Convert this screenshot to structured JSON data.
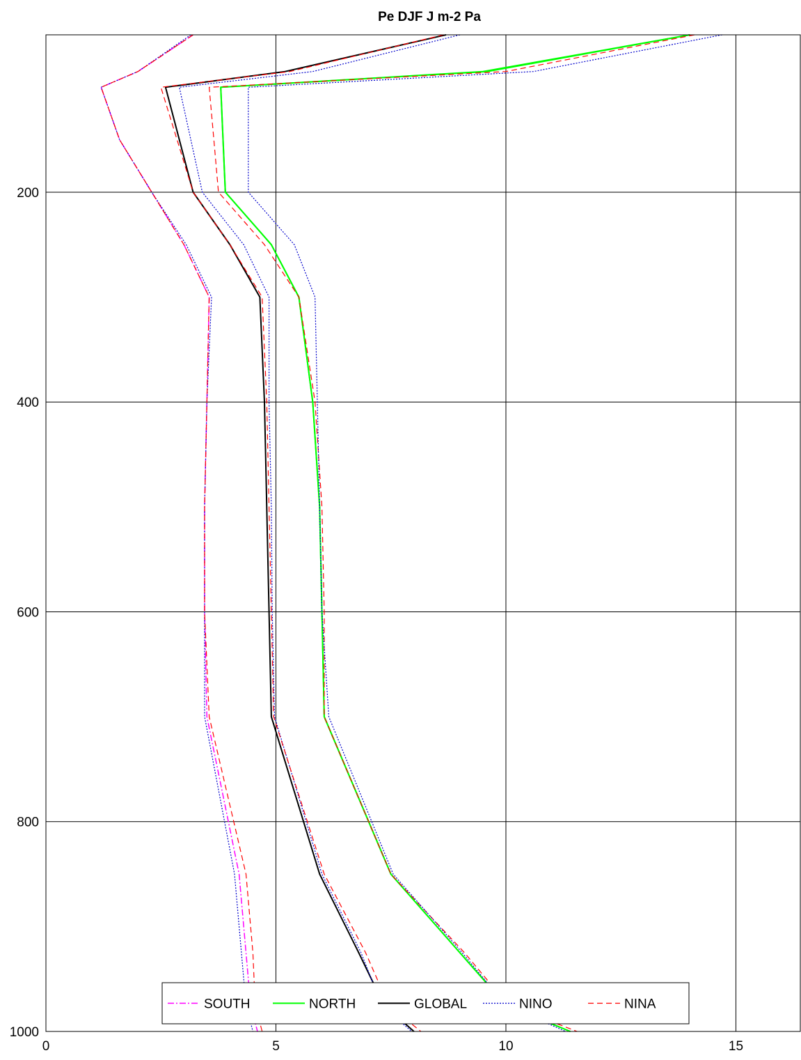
{
  "chart_data": {
    "type": "line",
    "title": "Pe DJF  J m-2 Pa",
    "xlabel": "",
    "ylabel": "",
    "xlim": [
      0,
      16.4
    ],
    "ylim": [
      50,
      1000
    ],
    "y_reversed": true,
    "grid": true,
    "x_ticks": [
      0,
      5,
      10,
      15
    ],
    "y_ticks": [
      200,
      400,
      600,
      800,
      1000
    ],
    "legend_position": "bottom",
    "y": [
      50,
      85,
      100,
      150,
      200,
      250,
      300,
      400,
      500,
      600,
      700,
      850,
      925,
      975,
      1000
    ],
    "series": [
      {
        "name": "SOUTH",
        "color": "#ff00ff",
        "style": "dashdot",
        "width": 1.5,
        "x": [
          3.2,
          2.0,
          1.2,
          1.6,
          2.3,
          3.0,
          3.55,
          3.5,
          3.45,
          3.45,
          3.5,
          4.2,
          4.35,
          4.45,
          4.6
        ]
      },
      {
        "name": "NORTH",
        "color": "#00ff00",
        "style": "solid",
        "width": 2,
        "x": [
          14.0,
          9.5,
          3.8,
          3.85,
          3.9,
          4.9,
          5.5,
          5.8,
          5.95,
          6.0,
          6.05,
          7.5,
          9.0,
          10.0,
          11.4
        ]
      },
      {
        "name": "GLOBAL",
        "color": "#000000",
        "style": "solid",
        "width": 2,
        "x": [
          8.7,
          5.2,
          2.6,
          2.9,
          3.2,
          4.0,
          4.65,
          4.75,
          4.8,
          4.85,
          4.9,
          5.95,
          6.8,
          7.35,
          8.0
        ]
      },
      {
        "name": "NINO",
        "color": "#0000cc",
        "style": "dotted",
        "width": 1.2,
        "x": [
          9.0,
          5.8,
          2.9,
          3.15,
          3.4,
          4.3,
          4.85,
          4.85,
          4.9,
          4.92,
          4.97,
          6.0,
          6.85,
          7.3,
          7.95
        ]
      },
      {
        "name": "NINA",
        "color": "#ff0000",
        "style": "dashed",
        "width": 1.2,
        "x": [
          8.65,
          5.3,
          2.5,
          2.85,
          3.2,
          4.0,
          4.7,
          4.8,
          4.85,
          4.9,
          4.95,
          6.05,
          6.95,
          7.45,
          8.15
        ]
      },
      {
        "name": "",
        "color": "#00ff00",
        "style": "solid",
        "width": 2,
        "x": [
          14.0,
          9.6,
          3.8,
          3.85,
          3.9,
          4.9,
          5.5,
          5.8,
          5.95,
          6.0,
          6.05,
          7.5,
          9.0,
          10.0,
          11.4
        ]
      },
      {
        "name": "",
        "color": "#ff0000",
        "style": "dashed",
        "width": 1.2,
        "x": [
          14.1,
          10.0,
          3.55,
          3.65,
          3.75,
          4.75,
          5.5,
          5.85,
          6.0,
          6.05,
          6.05,
          7.5,
          9.1,
          10.05,
          11.55
        ]
      },
      {
        "name": "",
        "color": "#0000cc",
        "style": "dotted",
        "width": 1.2,
        "x": [
          14.7,
          10.6,
          4.4,
          4.4,
          4.4,
          5.4,
          5.85,
          5.9,
          5.95,
          6.0,
          6.15,
          7.55,
          9.05,
          10.0,
          11.3
        ]
      },
      {
        "name": "",
        "color": "#0000cc",
        "style": "dotted",
        "width": 1.2,
        "x": [
          3.15,
          2.0,
          1.2,
          1.6,
          2.3,
          3.05,
          3.6,
          3.5,
          3.45,
          3.45,
          3.45,
          4.1,
          4.25,
          4.35,
          4.5
        ]
      },
      {
        "name": "",
        "color": "#ff0000",
        "style": "dashed",
        "width": 1.2,
        "x": [
          3.2,
          2.0,
          1.2,
          1.6,
          2.3,
          3.0,
          3.55,
          3.5,
          3.45,
          3.45,
          3.55,
          4.35,
          4.5,
          4.55,
          4.7
        ]
      }
    ]
  }
}
